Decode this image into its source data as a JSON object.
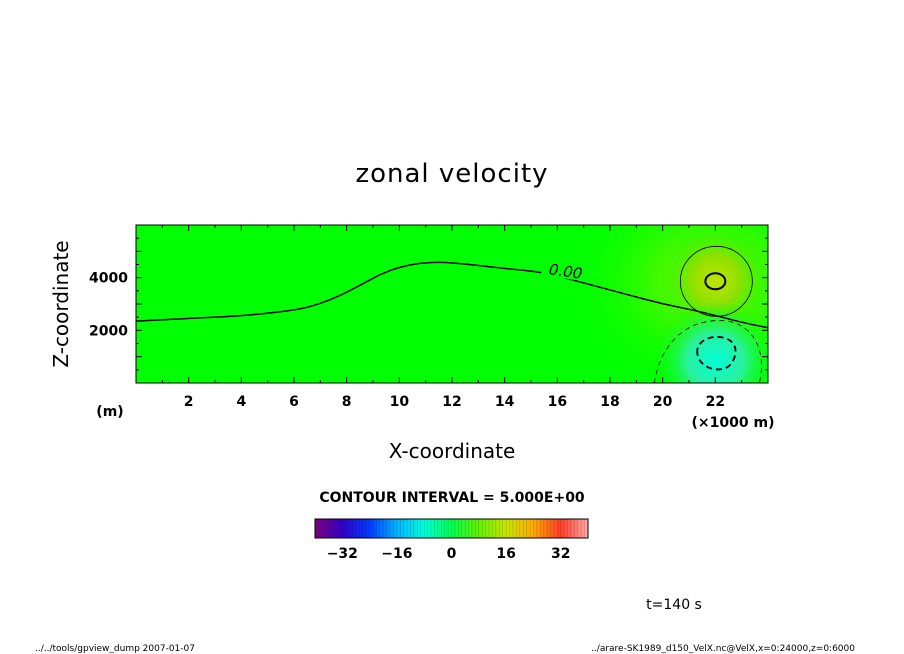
{
  "chart_data": {
    "type": "heatmap",
    "title": "zonal velocity",
    "xlabel": "X-coordinate",
    "ylabel": "Z-coordinate",
    "x_unit": "(×1000 m)",
    "y_unit": "(m)",
    "xlim": [
      0,
      24
    ],
    "ylim": [
      0,
      6000
    ],
    "x_ticks": [
      "2",
      "4",
      "6",
      "8",
      "10",
      "12",
      "14",
      "16",
      "18",
      "20",
      "22"
    ],
    "y_ticks": [
      "2000",
      "4000"
    ],
    "contour_interval": "CONTOUR INTERVAL = 5.000E+00",
    "zero_contour_label": "0.00",
    "zero_contour": [
      [
        0,
        2350
      ],
      [
        2,
        2450
      ],
      [
        4,
        2550
      ],
      [
        5.5,
        2700
      ],
      [
        6.5,
        2850
      ],
      [
        7.5,
        3200
      ],
      [
        8.5,
        3700
      ],
      [
        9.5,
        4250
      ],
      [
        10.5,
        4520
      ],
      [
        11.5,
        4600
      ],
      [
        12.5,
        4520
      ],
      [
        14,
        4350
      ],
      [
        15.5,
        4200
      ],
      [
        17,
        3800
      ],
      [
        18.5,
        3400
      ],
      [
        20,
        3000
      ],
      [
        21.5,
        2700
      ],
      [
        23,
        2300
      ],
      [
        24,
        2100
      ]
    ],
    "positive_max": {
      "x": 22,
      "z": 3900
    },
    "negative_min": {
      "x": 22,
      "z": 1000
    },
    "colorbar_ticks": [
      "−32",
      "−16",
      "0",
      "16",
      "32"
    ],
    "colorbar_range": [
      -40,
      40
    ],
    "time_label": "t=140 s",
    "footer_left": "../../tools/gpview_dump  2007-01-07",
    "footer_right": "../arare-SK1989_d150_VelX.nc@VelX,x=0:24000,z=0:6000"
  }
}
